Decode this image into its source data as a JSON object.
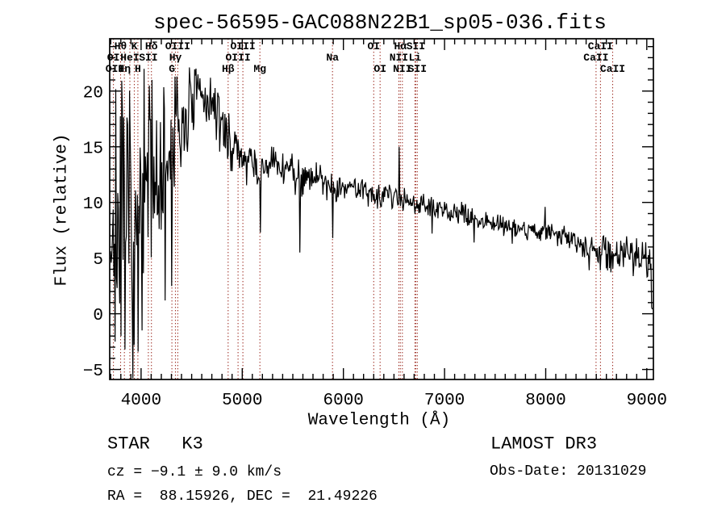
{
  "title": "spec-56595-GAC088N22B1_sp05-036.fits",
  "annotations": {
    "object_class": "STAR   K3",
    "cz": "cz = −9.1 ± 9.0 km/s",
    "ra_dec": "RA =  88.15926, DEC =  21.49226",
    "survey": "LAMOST DR3",
    "obs_date": "Obs-Date: 20131029"
  },
  "chart_data": {
    "type": "line",
    "title": "spec-56595-GAC088N22B1_sp05-036.fits",
    "xlabel": "Wavelength (Å)",
    "ylabel": "Flux (relative)",
    "xlim": [
      3690,
      9065
    ],
    "ylim": [
      -5.9,
      24.7
    ],
    "xticks": [
      4000,
      5000,
      6000,
      7000,
      8000,
      9000
    ],
    "yticks": [
      -5,
      0,
      5,
      10,
      15,
      20
    ],
    "x_minor_step": 100,
    "y_minor_step": 1,
    "grid": false,
    "legend": false,
    "line_color": "#000000",
    "marker_color": "#a03228",
    "marker_wavelengths": [
      3727,
      3798,
      3835,
      3889,
      3933,
      3968,
      4072,
      4102,
      4305,
      4340,
      4363,
      4861,
      4959,
      5007,
      5175,
      5893,
      6300,
      6363,
      6548,
      6563,
      6583,
      6708,
      6716,
      6731,
      8498,
      8542,
      8662
    ],
    "spectral_lines": [
      {
        "label": "Hθ",
        "wavelength": 3798,
        "row": 1
      },
      {
        "label": "K",
        "wavelength": 3933,
        "row": 1
      },
      {
        "label": "Hδ",
        "wavelength": 4102,
        "row": 1
      },
      {
        "label": "OIII",
        "wavelength": 4363,
        "row": 1
      },
      {
        "label": "OIII",
        "wavelength": 5007,
        "row": 1
      },
      {
        "label": "OI",
        "wavelength": 6300,
        "row": 1
      },
      {
        "label": "Hα",
        "wavelength": 6563,
        "row": 1
      },
      {
        "label": "SII",
        "wavelength": 6716,
        "row": 1
      },
      {
        "label": "CaII",
        "wavelength": 8542,
        "row": 1
      },
      {
        "label": "OI",
        "wavelength": 3727,
        "row": 2
      },
      {
        "label": "HeI",
        "wavelength": 3889,
        "row": 2
      },
      {
        "label": "SII",
        "wavelength": 4072,
        "row": 2
      },
      {
        "label": "Hγ",
        "wavelength": 4340,
        "row": 2
      },
      {
        "label": "OIII",
        "wavelength": 4959,
        "row": 2
      },
      {
        "label": "Na",
        "wavelength": 5893,
        "row": 2
      },
      {
        "label": "NII",
        "wavelength": 6548,
        "row": 2
      },
      {
        "label": "Li",
        "wavelength": 6708,
        "row": 2
      },
      {
        "label": "CaII",
        "wavelength": 8498,
        "row": 2
      },
      {
        "label": "OII",
        "wavelength": 3742,
        "row": 3
      },
      {
        "label": "Hη",
        "wavelength": 3835,
        "row": 3
      },
      {
        "label": "H",
        "wavelength": 3968,
        "row": 3
      },
      {
        "label": "G",
        "wavelength": 4305,
        "row": 3
      },
      {
        "label": "Hβ",
        "wavelength": 4861,
        "row": 3
      },
      {
        "label": "Mg",
        "wavelength": 5175,
        "row": 3
      },
      {
        "label": "OI",
        "wavelength": 6363,
        "row": 3
      },
      {
        "label": "NII",
        "wavelength": 6583,
        "row": 3
      },
      {
        "label": "SII",
        "wavelength": 6731,
        "row": 3
      },
      {
        "label": "CaII",
        "wavelength": 8662,
        "row": 3
      }
    ],
    "spectrum": {
      "sample_step": 6.5,
      "seed": 7,
      "continuum_anchors": [
        [
          3700,
          8
        ],
        [
          3760,
          9
        ],
        [
          3820,
          8
        ],
        [
          3880,
          8.5
        ],
        [
          3930,
          6
        ],
        [
          3980,
          6.5
        ],
        [
          4040,
          10
        ],
        [
          4100,
          12
        ],
        [
          4160,
          12.5
        ],
        [
          4220,
          12
        ],
        [
          4280,
          13
        ],
        [
          4340,
          15
        ],
        [
          4400,
          16.5
        ],
        [
          4460,
          18
        ],
        [
          4520,
          19
        ],
        [
          4580,
          19.6
        ],
        [
          4640,
          19.3
        ],
        [
          4700,
          18.7
        ],
        [
          4760,
          17.8
        ],
        [
          4820,
          16.6
        ],
        [
          4860,
          15.7
        ],
        [
          4920,
          14.8
        ],
        [
          5000,
          14.1
        ],
        [
          5080,
          13.5
        ],
        [
          5150,
          12.6
        ],
        [
          5220,
          13
        ],
        [
          5300,
          13.5
        ],
        [
          5400,
          13.2
        ],
        [
          5500,
          12.8
        ],
        [
          5600,
          12.4
        ],
        [
          5700,
          12.4
        ],
        [
          5800,
          12
        ],
        [
          5900,
          11.3
        ],
        [
          6000,
          11.5
        ],
        [
          6100,
          11.3
        ],
        [
          6200,
          11.1
        ],
        [
          6300,
          10.9
        ],
        [
          6400,
          10.7
        ],
        [
          6500,
          10.6
        ],
        [
          6600,
          10.3
        ],
        [
          6700,
          10.1
        ],
        [
          6800,
          9.8
        ],
        [
          6900,
          9.4
        ],
        [
          7000,
          9.2
        ],
        [
          7100,
          9
        ],
        [
          7200,
          8.8
        ],
        [
          7300,
          8.6
        ],
        [
          7400,
          8.4
        ],
        [
          7500,
          8.2
        ],
        [
          7600,
          7.9
        ],
        [
          7700,
          7.8
        ],
        [
          7800,
          7.6
        ],
        [
          7900,
          7.4
        ],
        [
          8000,
          7.3
        ],
        [
          8100,
          7.1
        ],
        [
          8200,
          6.9
        ],
        [
          8300,
          6.5
        ],
        [
          8400,
          6.1
        ],
        [
          8480,
          5.7
        ],
        [
          8550,
          5.6
        ],
        [
          8620,
          5.4
        ],
        [
          8700,
          5.5
        ],
        [
          8800,
          5.5
        ],
        [
          8900,
          5.3
        ],
        [
          9000,
          5
        ],
        [
          9040,
          4.8
        ],
        [
          9065,
          4.6
        ]
      ],
      "noise_sigma_anchors": [
        [
          3700,
          5.5
        ],
        [
          3900,
          5.5
        ],
        [
          4000,
          5
        ],
        [
          4100,
          4.5
        ],
        [
          4250,
          4
        ],
        [
          4400,
          2.3
        ],
        [
          4550,
          1.4
        ],
        [
          4800,
          1.2
        ],
        [
          5000,
          1
        ],
        [
          5400,
          0.85
        ],
        [
          5900,
          0.7
        ],
        [
          6500,
          0.6
        ],
        [
          7000,
          0.5
        ],
        [
          7600,
          0.5
        ],
        [
          8200,
          0.55
        ],
        [
          8600,
          0.75
        ],
        [
          9050,
          0.9
        ]
      ],
      "features": [
        [
          3745,
          -2.5
        ],
        [
          3802,
          -2
        ],
        [
          3842,
          -3.2
        ],
        [
          3935,
          -2.8
        ],
        [
          3972,
          -3.4
        ],
        [
          4012,
          -1.5
        ],
        [
          4080,
          20.5
        ],
        [
          4105,
          21
        ],
        [
          4235,
          1.2
        ],
        [
          4302,
          2.5
        ],
        [
          4332,
          21.3
        ],
        [
          4362,
          19.5
        ],
        [
          5180,
          7.3
        ],
        [
          5572,
          5.5
        ],
        [
          5895,
          6.8
        ],
        [
          6550,
          15
        ],
        [
          6875,
          7.2
        ],
        [
          7295,
          6.4
        ],
        [
          7672,
          6.3
        ],
        [
          7995,
          9.6
        ],
        [
          8540,
          3.9
        ],
        [
          8632,
          4.1
        ],
        [
          8765,
          4.2
        ],
        [
          9050,
          0.6
        ],
        [
          9056,
          0.4
        ]
      ]
    }
  }
}
